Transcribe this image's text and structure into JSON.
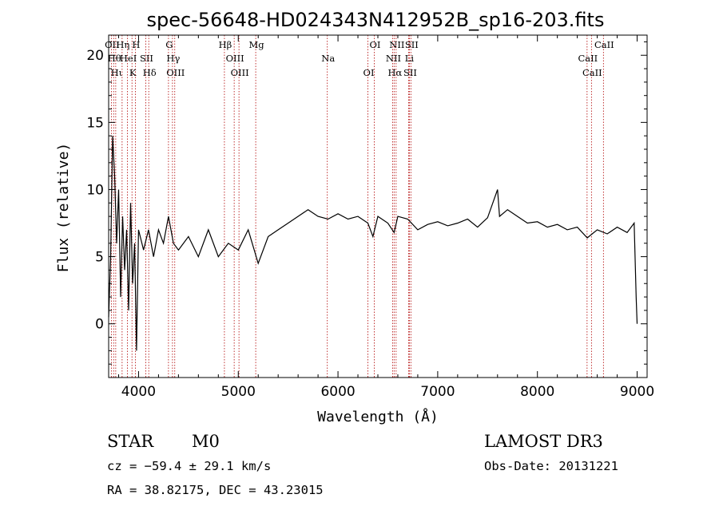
{
  "chart_data": {
    "type": "line",
    "title": "spec-56648-HD024343N412952B_sp16-203.fits",
    "xlabel": "Wavelength (Å)",
    "ylabel": "Flux (relative)",
    "xlim": [
      3700,
      9100
    ],
    "ylim": [
      -4,
      21.5
    ],
    "xticks": [
      4000,
      5000,
      6000,
      7000,
      8000,
      9000
    ],
    "yticks": [
      0,
      5,
      10,
      15,
      20
    ],
    "x_tick_labels": [
      "4000",
      "5000",
      "6000",
      "7000",
      "8000",
      "9000"
    ],
    "y_tick_labels": [
      "0",
      "5",
      "10",
      "15",
      "20"
    ],
    "series": [
      {
        "name": "spectrum",
        "color": "#000000",
        "points": [
          [
            3700,
            0.5
          ],
          [
            3720,
            5
          ],
          [
            3740,
            14
          ],
          [
            3760,
            11
          ],
          [
            3780,
            6
          ],
          [
            3800,
            10
          ],
          [
            3820,
            2
          ],
          [
            3840,
            8
          ],
          [
            3860,
            4
          ],
          [
            3880,
            7
          ],
          [
            3900,
            1
          ],
          [
            3920,
            9
          ],
          [
            3940,
            3
          ],
          [
            3960,
            6
          ],
          [
            3980,
            -2
          ],
          [
            4000,
            7
          ],
          [
            4050,
            5.5
          ],
          [
            4100,
            7
          ],
          [
            4150,
            5
          ],
          [
            4200,
            7
          ],
          [
            4250,
            6
          ],
          [
            4300,
            8
          ],
          [
            4350,
            6
          ],
          [
            4400,
            5.5
          ],
          [
            4500,
            6.5
          ],
          [
            4600,
            5
          ],
          [
            4700,
            7
          ],
          [
            4800,
            5
          ],
          [
            4900,
            6
          ],
          [
            5000,
            5.5
          ],
          [
            5100,
            7
          ],
          [
            5200,
            4.5
          ],
          [
            5300,
            6.5
          ],
          [
            5400,
            7
          ],
          [
            5500,
            7.5
          ],
          [
            5600,
            8
          ],
          [
            5700,
            8.5
          ],
          [
            5800,
            8
          ],
          [
            5900,
            7.8
          ],
          [
            6000,
            8.2
          ],
          [
            6100,
            7.8
          ],
          [
            6200,
            8
          ],
          [
            6300,
            7.5
          ],
          [
            6350,
            6.5
          ],
          [
            6400,
            8
          ],
          [
            6500,
            7.5
          ],
          [
            6563,
            6.8
          ],
          [
            6600,
            8
          ],
          [
            6700,
            7.8
          ],
          [
            6800,
            7
          ],
          [
            6900,
            7.4
          ],
          [
            7000,
            7.6
          ],
          [
            7100,
            7.3
          ],
          [
            7200,
            7.5
          ],
          [
            7300,
            7.8
          ],
          [
            7400,
            7.2
          ],
          [
            7500,
            7.9
          ],
          [
            7600,
            10
          ],
          [
            7620,
            8
          ],
          [
            7700,
            8.5
          ],
          [
            7800,
            8
          ],
          [
            7900,
            7.5
          ],
          [
            8000,
            7.6
          ],
          [
            8100,
            7.2
          ],
          [
            8200,
            7.4
          ],
          [
            8300,
            7.0
          ],
          [
            8400,
            7.2
          ],
          [
            8500,
            6.4
          ],
          [
            8600,
            7
          ],
          [
            8700,
            6.7
          ],
          [
            8800,
            7.2
          ],
          [
            8900,
            6.8
          ],
          [
            8970,
            7.5
          ],
          [
            8990,
            2
          ],
          [
            9000,
            0
          ]
        ]
      }
    ],
    "reference_lines": [
      {
        "wavelength": 3727,
        "label": "OII"
      },
      {
        "wavelength": 3750,
        "label": "Hθ"
      },
      {
        "wavelength": 3771,
        "label": "Hι"
      },
      {
        "wavelength": 3835,
        "label": "Hη"
      },
      {
        "wavelength": 3889,
        "label": "HeI"
      },
      {
        "wavelength": 3934,
        "label": "K"
      },
      {
        "wavelength": 3968,
        "label": "H"
      },
      {
        "wavelength": 4072,
        "label": "SII"
      },
      {
        "wavelength": 4102,
        "label": "Hδ"
      },
      {
        "wavelength": 4300,
        "label": "G"
      },
      {
        "wavelength": 4340,
        "label": "Hγ"
      },
      {
        "wavelength": 4363,
        "label": "OIII"
      },
      {
        "wavelength": 4861,
        "label": "Hβ"
      },
      {
        "wavelength": 4959,
        "label": "OIII"
      },
      {
        "wavelength": 5007,
        "label": "OIII"
      },
      {
        "wavelength": 5175,
        "label": "Mg"
      },
      {
        "wavelength": 5893,
        "label": "Na"
      },
      {
        "wavelength": 6300,
        "label": "OI"
      },
      {
        "wavelength": 6364,
        "label": "OI"
      },
      {
        "wavelength": 6548,
        "label": "NII"
      },
      {
        "wavelength": 6563,
        "label": "Hα"
      },
      {
        "wavelength": 6583,
        "label": "NII"
      },
      {
        "wavelength": 6708,
        "label": "Li"
      },
      {
        "wavelength": 6716,
        "label": "SII"
      },
      {
        "wavelength": 6731,
        "label": "SII"
      },
      {
        "wavelength": 8498,
        "label": "CaII"
      },
      {
        "wavelength": 8542,
        "label": "CaII"
      },
      {
        "wavelength": 8662,
        "label": "CaII"
      }
    ],
    "reference_line_color": "#b00000"
  },
  "info": {
    "class_label": "STAR",
    "subclass": "M0",
    "survey": "LAMOST DR3",
    "cz": "cz = −59.4 ± 29.1 km/s",
    "obs_date": "Obs-Date: 20131221",
    "coords": "RA =  38.82175, DEC =  43.23015"
  }
}
